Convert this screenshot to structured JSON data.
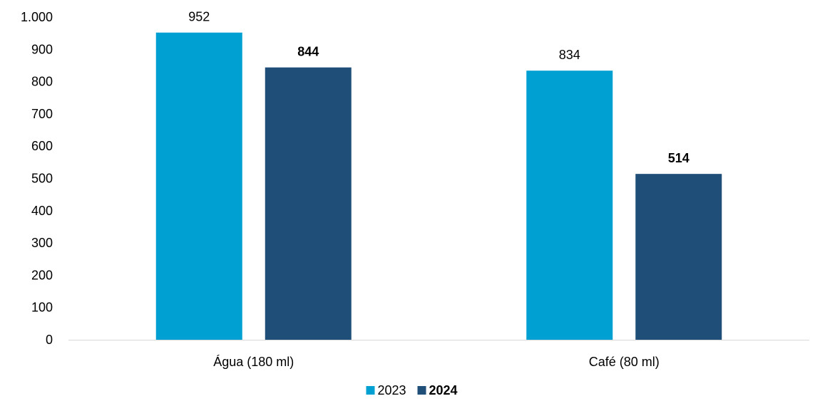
{
  "chart_data": {
    "type": "bar",
    "title": "",
    "xlabel": "",
    "ylabel": "",
    "categories": [
      "Água (180 ml)",
      "Café (80 ml)"
    ],
    "series": [
      {
        "name": "2023",
        "values": [
          952,
          834
        ],
        "color": "#00a0d2",
        "label_bold": false
      },
      {
        "name": "2024",
        "values": [
          844,
          514
        ],
        "color": "#1f4e79",
        "label_bold": true
      }
    ],
    "ylim": [
      0,
      1000
    ],
    "yticks": [
      {
        "value": 0,
        "label": "0"
      },
      {
        "value": 100,
        "label": "100"
      },
      {
        "value": 200,
        "label": "200"
      },
      {
        "value": 300,
        "label": "300"
      },
      {
        "value": 400,
        "label": "400"
      },
      {
        "value": 500,
        "label": "500"
      },
      {
        "value": 600,
        "label": "600"
      },
      {
        "value": 700,
        "label": "700"
      },
      {
        "value": 800,
        "label": "800"
      },
      {
        "value": 900,
        "label": "900"
      },
      {
        "value": 1000,
        "label": "1.000"
      }
    ],
    "grid": false,
    "legend_position": "bottom-center",
    "axis_color": "#d9d9d9"
  }
}
